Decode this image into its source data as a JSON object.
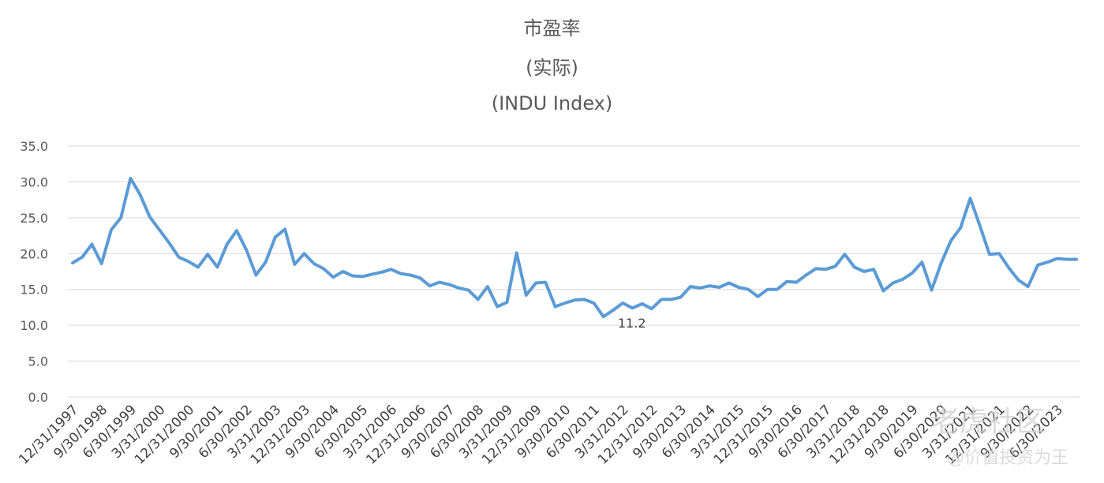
{
  "chart_data": {
    "type": "line",
    "title": "市盈率",
    "subtitle": "(实际)",
    "subtitle2": "(INDU Index)",
    "xlabel": "",
    "ylabel": "",
    "ylim": [
      0,
      35
    ],
    "yticks": [
      "0.0",
      "5.0",
      "10.0",
      "15.0",
      "20.0",
      "25.0",
      "30.0",
      "35.0"
    ],
    "grid": true,
    "legend": "none",
    "line_color": "#5B9BD5",
    "x_tick_labels": [
      "12/31/1997",
      "9/30/1998",
      "6/30/1999",
      "3/31/2000",
      "12/31/2000",
      "9/30/2001",
      "6/30/2002",
      "3/31/2003",
      "12/31/2003",
      "9/30/2004",
      "6/30/2005",
      "3/31/2006",
      "12/31/2006",
      "9/30/2007",
      "6/30/2008",
      "3/31/2009",
      "12/31/2009",
      "9/30/2010",
      "6/30/2011",
      "3/31/2012",
      "12/31/2012",
      "9/30/2013",
      "6/30/2014",
      "3/31/2015",
      "12/31/2015",
      "9/30/2016",
      "6/30/2017",
      "3/31/2018",
      "12/31/2018",
      "9/30/2019",
      "6/30/2020",
      "3/31/2021",
      "12/31/2021",
      "9/30/2022",
      "6/30/2023"
    ],
    "values": [
      18.7,
      19.5,
      21.3,
      18.6,
      23.3,
      25.0,
      30.5,
      28.2,
      25.1,
      23.3,
      21.5,
      19.5,
      18.9,
      18.1,
      19.9,
      18.1,
      21.3,
      23.2,
      20.5,
      17.0,
      18.8,
      22.3,
      23.4,
      18.5,
      20.0,
      18.6,
      17.9,
      16.7,
      17.5,
      16.9,
      16.8,
      17.1,
      17.4,
      17.8,
      17.2,
      17.0,
      16.6,
      15.5,
      16.0,
      15.7,
      15.2,
      14.9,
      13.6,
      15.4,
      12.6,
      13.2,
      20.1,
      14.2,
      15.9,
      16.0,
      12.6,
      13.1,
      13.5,
      13.6,
      13.1,
      11.2,
      12.1,
      13.1,
      12.4,
      13.0,
      12.3,
      13.6,
      13.6,
      13.9,
      15.4,
      15.2,
      15.5,
      15.3,
      15.9,
      15.3,
      15.0,
      14.0,
      15.0,
      15.0,
      16.1,
      16.0,
      17.0,
      17.9,
      17.8,
      18.2,
      19.9,
      18.1,
      17.5,
      17.8,
      14.8,
      15.9,
      16.4,
      17.3,
      18.8,
      14.9,
      18.7,
      21.8,
      23.6,
      27.7,
      23.9,
      19.9,
      20.0,
      18.0,
      16.3,
      15.4,
      18.4,
      18.8,
      19.3,
      19.2,
      19.2
    ],
    "annotations": [
      {
        "index": 55,
        "text": "11.2"
      }
    ]
  },
  "watermark": {
    "line1": "老虎社区",
    "line2": "@价值投资为王"
  }
}
